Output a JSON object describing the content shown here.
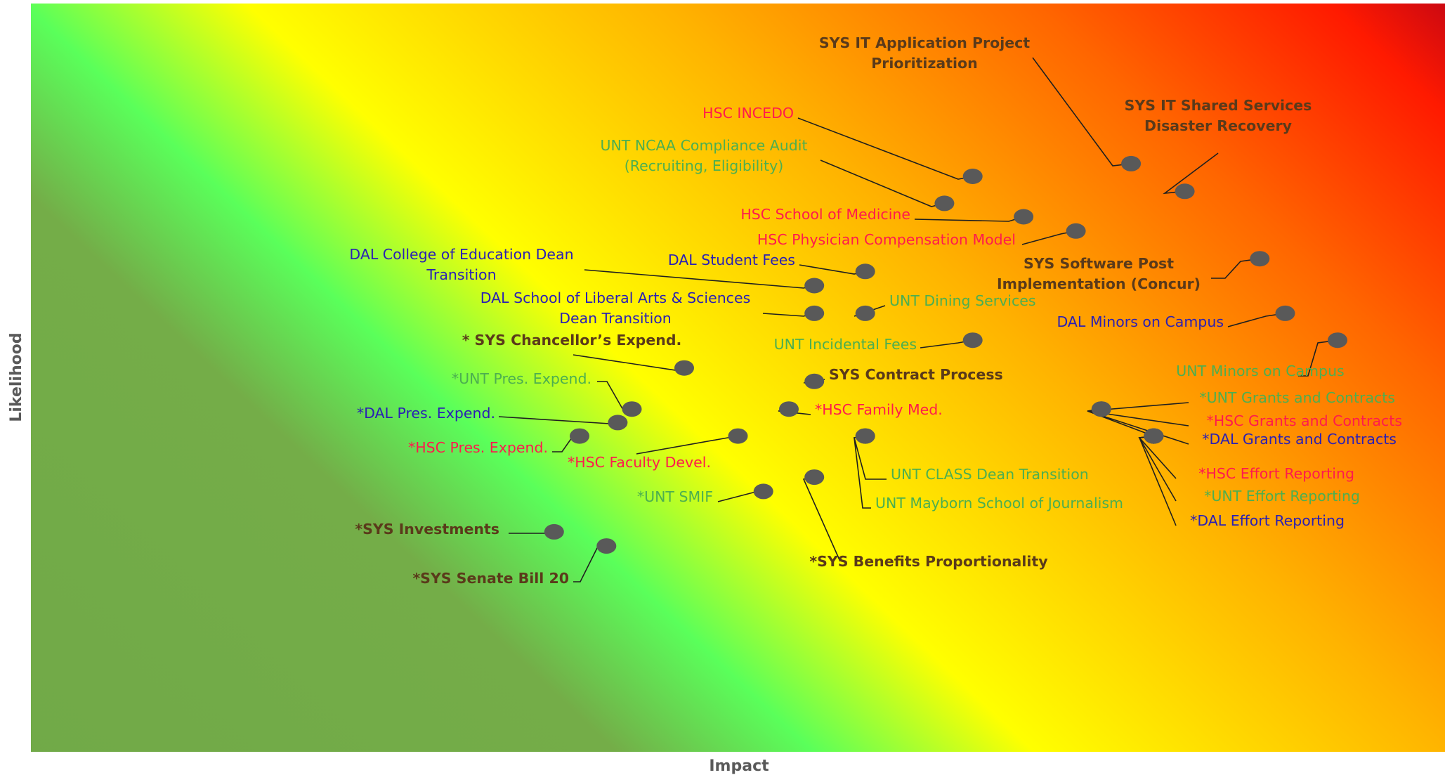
{
  "chart_data": {
    "type": "scatter",
    "title": "",
    "xlabel": "Impact",
    "ylabel": "Likelihood",
    "xlim": [
      0,
      100
    ],
    "ylim": [
      0,
      100
    ],
    "grid": false,
    "background": "diagonal heat-map gradient: green (low impact/low likelihood) to yellow, orange and red (high impact/high likelihood)",
    "colors": {
      "sys": "#5a3a1a",
      "hsc": "#ff1a4d",
      "unt": "#4caf50",
      "dal": "#2a1fb5"
    },
    "points": [
      {
        "label": [
          "SYS IT Application Project",
          "Prioritization"
        ],
        "group": "sys",
        "x": 77.8,
        "y": 78.6
      },
      {
        "label": [
          "SYS IT Shared Services",
          "Disaster Recovery"
        ],
        "group": "sys",
        "x": 81.6,
        "y": 74.9
      },
      {
        "label": [
          "HSC INCEDO"
        ],
        "group": "hsc",
        "x": 66.6,
        "y": 76.9
      },
      {
        "label": [
          "UNT NCAA Compliance Audit",
          "(Recruiting, Eligibility)"
        ],
        "group": "unt",
        "x": 64.6,
        "y": 73.3
      },
      {
        "label": [
          "HSC School of Medicine"
        ],
        "group": "hsc",
        "x": 70.2,
        "y": 71.5
      },
      {
        "label": [
          "HSC Physician Compensation Model"
        ],
        "group": "hsc",
        "x": 73.9,
        "y": 69.6
      },
      {
        "label": [
          "SYS Software Post",
          "Implementation (Concur)"
        ],
        "group": "sys",
        "x": 86.9,
        "y": 65.9
      },
      {
        "label": [
          "DAL College of Education Dean",
          "Transition"
        ],
        "group": "dal",
        "x": 55.4,
        "y": 62.3
      },
      {
        "label": [
          "DAL Student Fees"
        ],
        "group": "dal",
        "x": 59.0,
        "y": 64.2
      },
      {
        "label": [
          "DAL School of Liberal Arts & Sciences",
          "Dean Transition"
        ],
        "group": "dal",
        "x": 55.4,
        "y": 58.6
      },
      {
        "label": [
          "UNT Dining Services"
        ],
        "group": "unt",
        "x": 59.0,
        "y": 58.6
      },
      {
        "label": [
          "DAL Minors on Campus"
        ],
        "group": "dal",
        "x": 88.7,
        "y": 58.6
      },
      {
        "label": [
          "UNT Incidental Fees"
        ],
        "group": "unt",
        "x": 66.6,
        "y": 55.0
      },
      {
        "label": [
          "UNT Minors on Campus"
        ],
        "group": "unt",
        "x": 92.4,
        "y": 55.0
      },
      {
        "label": [
          "* SYS Chancellor’s Expend."
        ],
        "group": "sys",
        "x": 46.2,
        "y": 51.3
      },
      {
        "label": [
          "SYS Contract Process"
        ],
        "group": "sys",
        "x": 55.4,
        "y": 49.5
      },
      {
        "label": [
          "*UNT Pres. Expend."
        ],
        "group": "unt",
        "x": 42.5,
        "y": 45.8
      },
      {
        "label": [
          "*DAL Pres. Expend."
        ],
        "group": "dal",
        "x": 41.5,
        "y": 44.0
      },
      {
        "label": [
          "*HSC Family Med."
        ],
        "group": "hsc",
        "x": 53.6,
        "y": 45.8
      },
      {
        "label": [
          "*UNT Grants and Contracts"
        ],
        "group": "unt",
        "x": 75.7,
        "y": 45.8
      },
      {
        "label": [
          "*HSC Grants and Contracts"
        ],
        "group": "hsc",
        "x": 75.7,
        "y": 45.8
      },
      {
        "label": [
          "*DAL Grants and Contracts"
        ],
        "group": "dal",
        "x": 79.4,
        "y": 42.2
      },
      {
        "label": [
          "*HSC Pres. Expend."
        ],
        "group": "hsc",
        "x": 38.8,
        "y": 42.2
      },
      {
        "label": [
          "*HSC Faculty Devel."
        ],
        "group": "hsc",
        "x": 50.0,
        "y": 42.2
      },
      {
        "label": [
          "UNT CLASS Dean Transition"
        ],
        "group": "unt",
        "x": 59.0,
        "y": 42.2
      },
      {
        "label": [
          "UNT Mayborn School of Journalism"
        ],
        "group": "unt",
        "x": 59.0,
        "y": 42.2
      },
      {
        "label": [
          "*HSC Effort Reporting"
        ],
        "group": "hsc",
        "x": 79.4,
        "y": 42.2
      },
      {
        "label": [
          "*UNT Effort Reporting"
        ],
        "group": "unt",
        "x": 79.4,
        "y": 42.2
      },
      {
        "label": [
          "*DAL Effort Reporting"
        ],
        "group": "dal",
        "x": 79.4,
        "y": 42.2
      },
      {
        "label": [
          "*UNT SMIF"
        ],
        "group": "unt",
        "x": 51.8,
        "y": 34.8
      },
      {
        "label": [
          "*SYS Benefits Proportionality"
        ],
        "group": "sys",
        "x": 55.4,
        "y": 36.7
      },
      {
        "label": [
          "*SYS Investments"
        ],
        "group": "sys",
        "x": 37.0,
        "y": 29.4
      },
      {
        "label": [
          "*SYS Senate Bill 20"
        ],
        "group": "sys",
        "x": 40.7,
        "y": 27.5
      }
    ]
  }
}
